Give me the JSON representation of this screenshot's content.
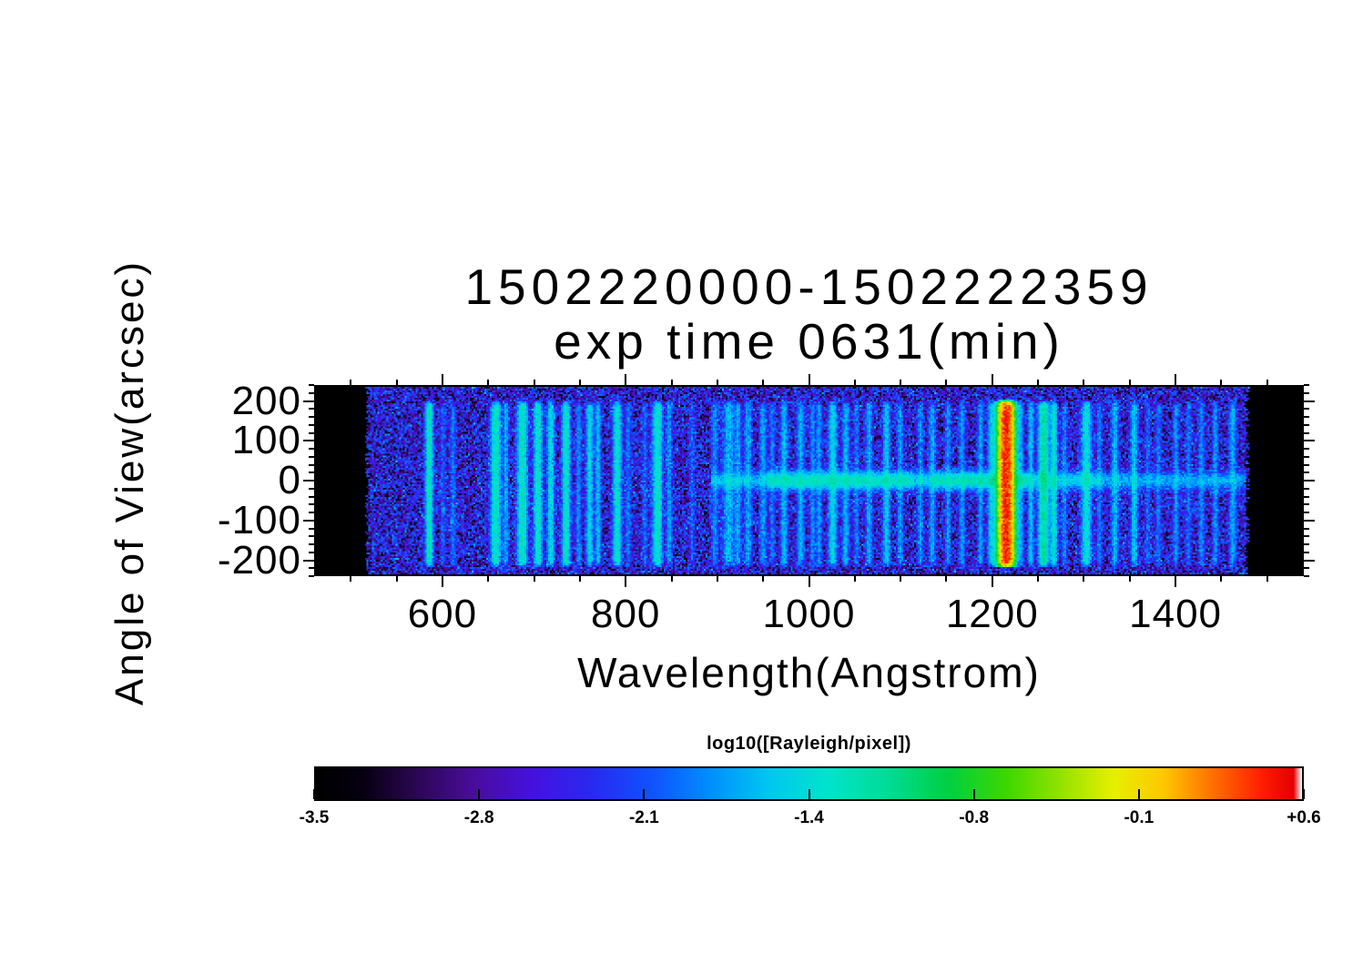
{
  "chart_data": {
    "type": "heatmap",
    "title": "1502220000-1502222359",
    "subtitle": "exp time 0631(min)",
    "xlabel": "Wavelength(Angstrom)",
    "ylabel": "Angle of View(arcsec)",
    "xlim": [
      460,
      1540
    ],
    "ylim": [
      -240,
      240
    ],
    "xticks": [
      600,
      800,
      1000,
      1200,
      1400
    ],
    "xtick_labels": [
      "600",
      "800",
      "1000",
      "1200",
      "1400"
    ],
    "x_minor_start": 500,
    "x_minor_end": 1500,
    "x_minor_step": 50,
    "yticks": [
      200,
      100,
      0,
      -100,
      -200
    ],
    "ytick_labels": [
      "200",
      "100",
      "0",
      "-100",
      "-200"
    ],
    "y_minor_step": 20,
    "grid": false,
    "data_extent_angstrom": [
      516,
      1480
    ],
    "line_extent_arcsec": [
      -205,
      188
    ],
    "background": {
      "base_log10": -3.45,
      "range_log10": 1.5
    },
    "colorbar": {
      "label": "log10([Rayleigh/pixel])",
      "min": -3.5,
      "max": 0.6,
      "tick_labels": [
        "-3.5",
        "-2.8",
        "-2.1",
        "-1.4",
        "-0.8",
        "-0.1",
        "+0.6"
      ]
    },
    "colormap_stops": [
      [
        0.0,
        "#000000"
      ],
      [
        0.045,
        "#060010"
      ],
      [
        0.1,
        "#2b0752"
      ],
      [
        0.16,
        "#4a0d9e"
      ],
      [
        0.22,
        "#4512e0"
      ],
      [
        0.28,
        "#2a2af0"
      ],
      [
        0.34,
        "#1053ff"
      ],
      [
        0.4,
        "#0090ff"
      ],
      [
        0.46,
        "#00c8f0"
      ],
      [
        0.52,
        "#00e4cc"
      ],
      [
        0.58,
        "#00dc96"
      ],
      [
        0.64,
        "#00d044"
      ],
      [
        0.7,
        "#3cd800"
      ],
      [
        0.76,
        "#9be400"
      ],
      [
        0.81,
        "#e8f000"
      ],
      [
        0.86,
        "#ffc800"
      ],
      [
        0.91,
        "#ff7000"
      ],
      [
        0.96,
        "#ff1e00"
      ],
      [
        0.992,
        "#e60000"
      ],
      [
        1.0,
        "#ffffff"
      ]
    ],
    "emission_lines_format": [
      "wavelength_angstrom",
      "log10_rayleigh_per_pixel",
      "fwhm_angstrom"
    ],
    "emission_lines": [
      [
        584,
        -1.25,
        5
      ],
      [
        599,
        -2.3,
        4
      ],
      [
        610,
        -2.1,
        4
      ],
      [
        657,
        -1.35,
        7
      ],
      [
        668,
        -1.8,
        4
      ],
      [
        686,
        -1.3,
        7
      ],
      [
        703,
        -1.4,
        6
      ],
      [
        717,
        -1.5,
        5
      ],
      [
        734,
        -1.35,
        6
      ],
      [
        748,
        -2.0,
        4
      ],
      [
        760,
        -1.55,
        5
      ],
      [
        769,
        -1.7,
        4
      ],
      [
        790,
        -1.4,
        6
      ],
      [
        802,
        -2.1,
        4
      ],
      [
        820,
        -2.2,
        4
      ],
      [
        834,
        -1.35,
        7
      ],
      [
        847,
        -1.9,
        4
      ],
      [
        872,
        -2.3,
        4
      ],
      [
        897,
        -2.0,
        5
      ],
      [
        912,
        -1.75,
        8
      ],
      [
        922,
        -1.85,
        5
      ],
      [
        933,
        -1.85,
        5
      ],
      [
        950,
        -1.9,
        5
      ],
      [
        960,
        -2.1,
        4
      ],
      [
        973,
        -1.75,
        5
      ],
      [
        991,
        -1.8,
        5
      ],
      [
        1004,
        -2.0,
        4
      ],
      [
        1011,
        -1.9,
        4
      ],
      [
        1026,
        -1.55,
        6
      ],
      [
        1040,
        -1.8,
        5
      ],
      [
        1052,
        -2.1,
        4
      ],
      [
        1066,
        -1.85,
        5
      ],
      [
        1085,
        -1.65,
        5
      ],
      [
        1100,
        -1.9,
        4
      ],
      [
        1122,
        -2.0,
        4
      ],
      [
        1135,
        -1.85,
        5
      ],
      [
        1152,
        -1.95,
        4
      ],
      [
        1168,
        -1.9,
        4
      ],
      [
        1188,
        -1.9,
        4
      ],
      [
        1200,
        -1.6,
        5
      ],
      [
        1216,
        0.45,
        10
      ],
      [
        1232,
        -1.9,
        4
      ],
      [
        1243,
        -1.7,
        4
      ],
      [
        1257,
        -1.15,
        7
      ],
      [
        1268,
        -1.4,
        5
      ],
      [
        1280,
        -2.0,
        4
      ],
      [
        1304,
        -1.45,
        7
      ],
      [
        1318,
        -2.1,
        4
      ],
      [
        1335,
        -1.75,
        5
      ],
      [
        1356,
        -1.65,
        5
      ],
      [
        1371,
        -2.2,
        4
      ],
      [
        1383,
        -2.1,
        4
      ],
      [
        1402,
        -1.95,
        4
      ],
      [
        1416,
        -2.2,
        4
      ],
      [
        1430,
        -2.0,
        4
      ],
      [
        1445,
        -1.95,
        4
      ],
      [
        1464,
        -1.85,
        5
      ]
    ],
    "center_band": {
      "sigma_arcsec": 12,
      "segments_format": [
        "from_angstrom",
        "to_angstrom",
        "log10_value"
      ],
      "segments": [
        [
          893,
          955,
          -1.75
        ],
        [
          955,
          1115,
          -1.35
        ],
        [
          1115,
          1135,
          -1.6
        ],
        [
          1135,
          1240,
          -1.3
        ],
        [
          1240,
          1320,
          -1.6
        ],
        [
          1320,
          1478,
          -1.85
        ]
      ]
    }
  }
}
